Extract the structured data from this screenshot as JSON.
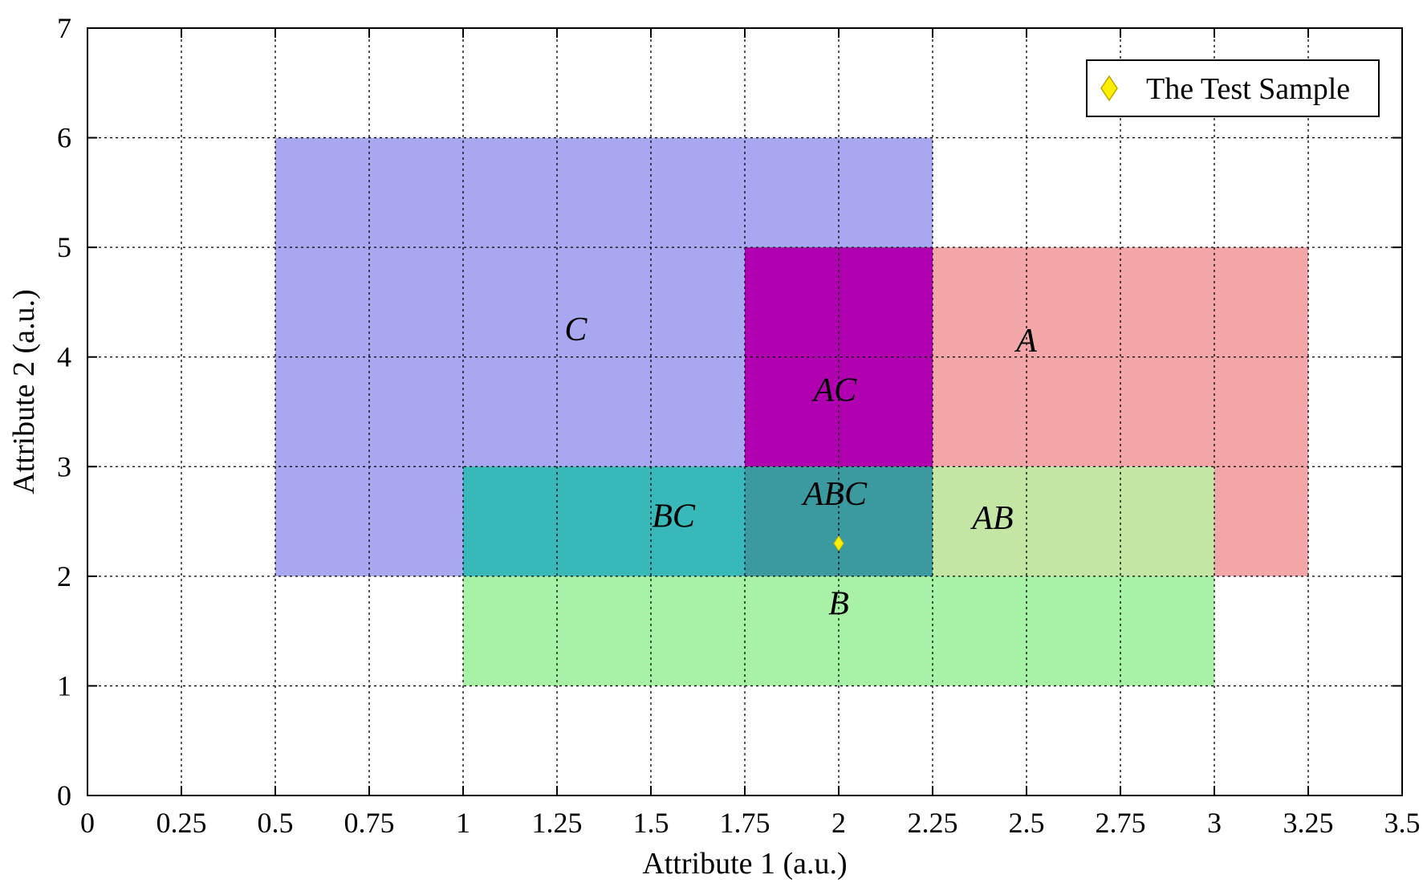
{
  "chart_data": {
    "type": "area",
    "title": "",
    "xlabel": "Attribute 1 (a.u.)",
    "ylabel": "Attribute 2 (a.u.)",
    "xlim": [
      0,
      3.5
    ],
    "ylim": [
      0,
      7
    ],
    "xticks": [
      "0",
      "0.25",
      "0.5",
      "0.75",
      "1",
      "1.25",
      "1.5",
      "1.75",
      "2",
      "2.25",
      "2.5",
      "2.75",
      "3",
      "3.25",
      "3.5"
    ],
    "xtick_values": [
      0,
      0.25,
      0.5,
      0.75,
      1,
      1.25,
      1.5,
      1.75,
      2,
      2.25,
      2.5,
      2.75,
      3,
      3.25,
      3.5
    ],
    "yticks": [
      "0",
      "1",
      "2",
      "3",
      "4",
      "5",
      "6",
      "7"
    ],
    "ytick_values": [
      0,
      1,
      2,
      3,
      4,
      5,
      6,
      7
    ],
    "grid": true,
    "grid_style": "dotted",
    "regions": [
      {
        "name": "C",
        "x": [
          0.5,
          2.25
        ],
        "y": [
          2,
          6
        ],
        "color": "#a8a8f0"
      },
      {
        "name": "A",
        "x": [
          1.75,
          3.25
        ],
        "y": [
          2,
          5
        ],
        "color": "#f2a6a8"
      },
      {
        "name": "B",
        "x": [
          1,
          3
        ],
        "y": [
          1,
          3
        ],
        "color": "#a8f2a8"
      }
    ],
    "overlaps": [
      {
        "name": "AC",
        "x": [
          1.75,
          2.25
        ],
        "y": [
          3,
          5
        ],
        "color": "#b000b0"
      },
      {
        "name": "BC",
        "x": [
          1,
          1.75
        ],
        "y": [
          2,
          3
        ],
        "color": "#38b8b8"
      },
      {
        "name": "ABC",
        "x": [
          1.75,
          2.25
        ],
        "y": [
          2,
          3
        ],
        "color": "#3a9aa0"
      },
      {
        "name": "AB",
        "x": [
          2.25,
          3
        ],
        "y": [
          2,
          3
        ],
        "color": "#c4e6a4"
      }
    ],
    "region_labels": [
      {
        "text": "C",
        "x": 1.3,
        "y": 4.15
      },
      {
        "text": "A",
        "x": 2.5,
        "y": 4.05
      },
      {
        "text": "AC",
        "x": 1.99,
        "y": 3.6
      },
      {
        "text": "ABC",
        "x": 1.99,
        "y": 2.65
      },
      {
        "text": "BC",
        "x": 1.56,
        "y": 2.45
      },
      {
        "text": "AB",
        "x": 2.41,
        "y": 2.43
      },
      {
        "text": "B",
        "x": 2.0,
        "y": 1.65
      }
    ],
    "series": [
      {
        "name": "The Test Sample",
        "marker": "diamond",
        "color": "#ffee00",
        "x": [
          2.0
        ],
        "y": [
          2.3
        ]
      }
    ],
    "legend": {
      "position": "top-right",
      "entries": [
        "The Test Sample"
      ]
    }
  }
}
